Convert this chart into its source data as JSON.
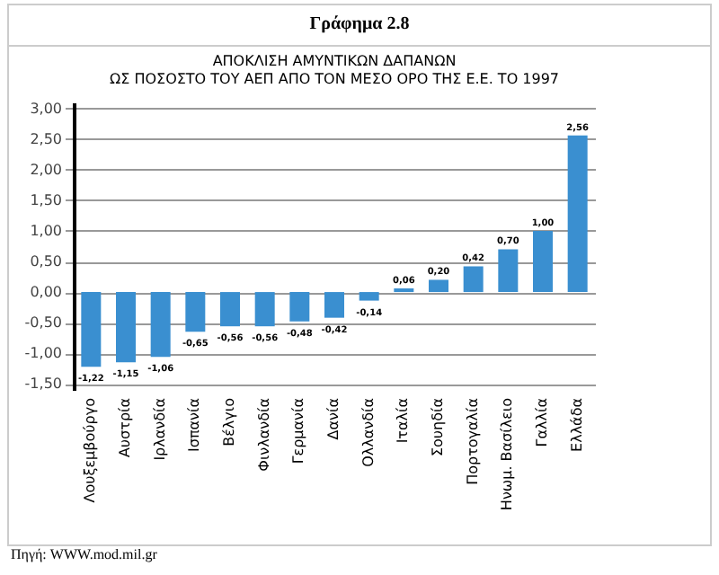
{
  "chart_data": {
    "type": "bar",
    "title": "Γράφημα 2.8",
    "subtitle": "ΑΠΟΚΛΙΣΗ ΑΜΥΝΤΙΚΩΝ ΔΑΠΑΝΩΝ\nΩΣ ΠΟΣΟΣΤΟ ΤΟΥ ΑΕΠ ΑΠΟ ΤΟΝ ΜΕΣΟ ΟΡΟ ΤΗΣ Ε.Ε. ΤΟ 1997",
    "categories": [
      "Λουξεμβούργο",
      "Αυστρία",
      "Ιρλανδία",
      "Ισπανία",
      "Βέλγιο",
      "Φινλανδία",
      "Γερμανία",
      "Δανία",
      "Ολλανδία",
      "Ιταλία",
      "Σουηδία",
      "Πορτογαλία",
      "Ηνωμ. Βασίλειο",
      "Γαλλία",
      "Ελλάδα"
    ],
    "values": [
      -1.22,
      -1.15,
      -1.06,
      -0.65,
      -0.56,
      -0.56,
      -0.48,
      -0.42,
      -0.14,
      0.06,
      0.2,
      0.42,
      0.7,
      1.0,
      2.56
    ],
    "color": "#3a8fd0",
    "ylim": [
      -1.6,
      3.1
    ],
    "yticks": [
      {
        "value": -1.5,
        "label": "-1,50"
      },
      {
        "value": -1,
        "label": "-1,00"
      },
      {
        "value": -0.5,
        "label": "-0,50"
      },
      {
        "value": 0,
        "label": "0,00"
      },
      {
        "value": 0.5,
        "label": "0,50"
      },
      {
        "value": 1,
        "label": "1,00"
      },
      {
        "value": 1.5,
        "label": "1,50"
      },
      {
        "value": 2,
        "label": "2,00"
      },
      {
        "value": 2.5,
        "label": "2,50"
      },
      {
        "value": 3,
        "label": "3,00"
      }
    ],
    "value_labels": [
      "-1,22",
      "-1,15",
      "-1,06",
      "-0,65",
      "-0,56",
      "-0,56",
      "-0,48",
      "-0,42",
      "-0,14",
      "0,06",
      "0,20",
      "0,42",
      "0,70",
      "1,00",
      "2,56"
    ],
    "grid": "y",
    "annotations": [
      "Πηγή: WWW.mod.mil.gr"
    ]
  }
}
